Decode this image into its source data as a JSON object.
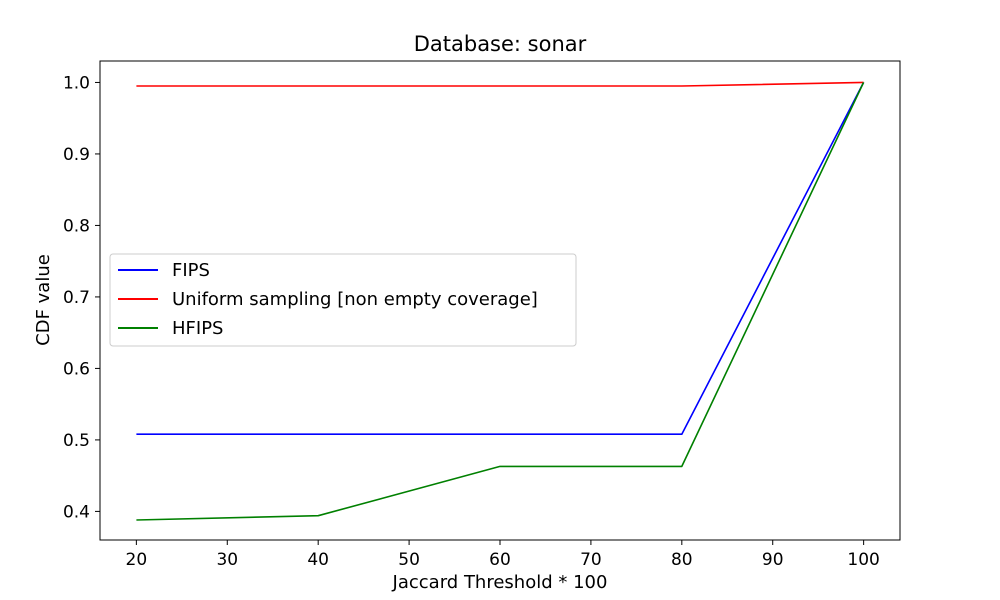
{
  "chart_data": {
    "type": "line",
    "title": "Database: sonar",
    "xlabel": "Jaccard Threshold * 100",
    "ylabel": "CDF value",
    "x": [
      20,
      40,
      60,
      80,
      100
    ],
    "xlim": [
      16,
      104
    ],
    "ylim": [
      0.36,
      1.03
    ],
    "xticks": [
      20,
      30,
      40,
      50,
      60,
      70,
      80,
      90,
      100
    ],
    "yticks": [
      0.4,
      0.5,
      0.6,
      0.7,
      0.8,
      0.9,
      1.0
    ],
    "grid": false,
    "legend_position": "center-left",
    "series": [
      {
        "name": "FIPS",
        "color": "#0000ff",
        "values": [
          0.508,
          0.508,
          0.508,
          0.508,
          1.0
        ]
      },
      {
        "name": "Uniform sampling [non empty coverage]",
        "color": "#ff0000",
        "values": [
          0.995,
          0.995,
          0.995,
          0.995,
          1.0
        ]
      },
      {
        "name": "HFIPS",
        "color": "#008000",
        "values": [
          0.388,
          0.394,
          0.463,
          0.463,
          1.0
        ]
      }
    ]
  }
}
